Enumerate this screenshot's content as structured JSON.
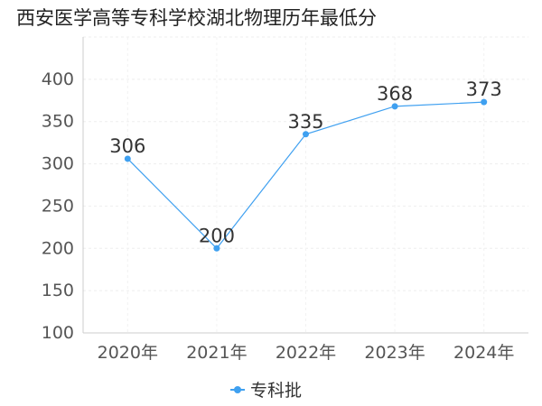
{
  "chart_data": {
    "type": "line",
    "title": "西安医学高等专科学校湖北物理历年最低分",
    "categories": [
      "2020年",
      "2021年",
      "2022年",
      "2023年",
      "2024年"
    ],
    "series": [
      {
        "name": "专科批",
        "values": [
          306,
          200,
          335,
          368,
          373
        ],
        "color": "#3fa0f0"
      }
    ],
    "ylim": [
      100,
      450
    ],
    "yticks": [
      100,
      150,
      200,
      250,
      300,
      350,
      400
    ],
    "grid": true,
    "legend_position": "bottom-center"
  }
}
